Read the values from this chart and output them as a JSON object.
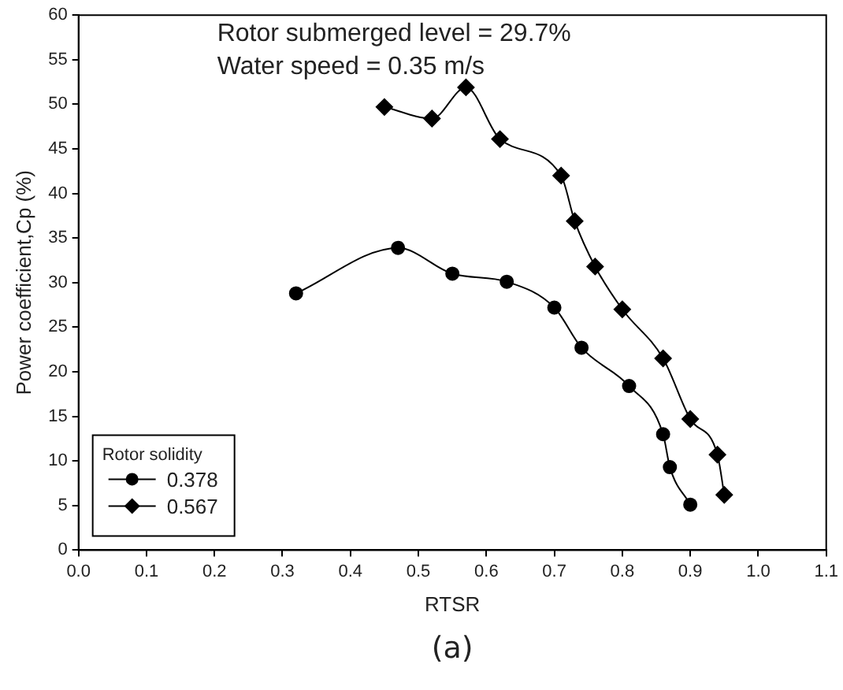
{
  "chart_data": {
    "type": "line",
    "xlabel": "RTSR",
    "ylabel": "Power coefficient,Cp (%)",
    "legend_title": "Rotor solidity",
    "legend": "bottom left",
    "grid": false,
    "annotations": [
      "Rotor submerged level = 29.7%",
      "Water speed = 0.35 m/s",
      "(a)"
    ],
    "xlim": [
      0,
      1.1
    ],
    "xticks": [
      {
        "value": 0,
        "label": "0.0"
      },
      0.1,
      0.2,
      0.3,
      0.4,
      0.5,
      0.6,
      0.7,
      0.8,
      0.9,
      {
        "value": 1,
        "label": "1.0"
      },
      1.1
    ],
    "ylim": [
      0,
      60
    ],
    "yticks": [
      0,
      5,
      10,
      15,
      20,
      25,
      30,
      35,
      40,
      45,
      50,
      55,
      60
    ],
    "series": [
      {
        "name": "0.378",
        "color": "#000000",
        "marker": "circle",
        "x": [
          0.32,
          0.47,
          0.55,
          0.63,
          0.7,
          0.74,
          0.81,
          0.86,
          0.87,
          0.9
        ],
        "values": [
          28.8,
          33.9,
          31.0,
          30.1,
          27.2,
          22.7,
          18.4,
          13.0,
          9.3,
          5.1
        ]
      },
      {
        "name": "0.567",
        "color": "#000000",
        "marker": "diamond",
        "x": [
          0.45,
          0.52,
          0.57,
          0.62,
          0.71,
          0.73,
          0.76,
          0.8,
          0.86,
          0.9,
          0.94,
          0.95
        ],
        "values": [
          49.7,
          48.4,
          51.9,
          46.1,
          42.0,
          36.9,
          31.8,
          27.0,
          21.5,
          14.7,
          10.7,
          6.2
        ]
      }
    ]
  }
}
